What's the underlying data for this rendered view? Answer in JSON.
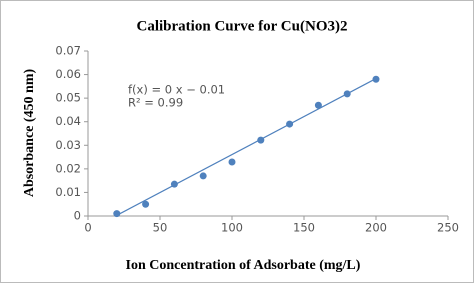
{
  "chart_data": {
    "type": "scatter",
    "title": "Calibration Curve for Cu(NO3)2",
    "x_label": "Ion Concentration of Adsorbate (mg/L)",
    "y_label": "Absorbance (450 nm)",
    "annotations": [
      "f(x) = 0 x − 0.01",
      "R² = 0.99"
    ],
    "x": [
      20,
      40,
      60,
      80,
      100,
      120,
      140,
      160,
      180,
      200
    ],
    "series": [
      {
        "color": "#4f81bd",
        "values": [
          0.001,
          0.005,
          0.0135,
          0.017,
          0.0229,
          0.0322,
          0.039,
          0.047,
          0.0518,
          0.058
        ]
      }
    ],
    "trendline": {
      "color": "#4f81bd",
      "x": [
        20,
        200
      ],
      "y": [
        0.0003,
        0.0583
      ]
    },
    "xlim": [
      0,
      250
    ],
    "xticks": [
      0,
      50,
      100,
      150,
      200,
      250
    ],
    "ylim": [
      0,
      0.07
    ],
    "yticks": [
      0,
      0.01,
      0.02,
      0.03,
      0.04,
      0.05,
      0.06,
      0.07
    ]
  }
}
